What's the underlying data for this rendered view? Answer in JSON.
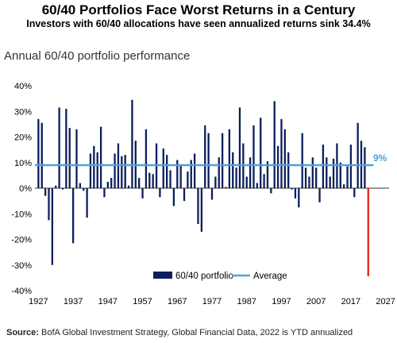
{
  "header": {
    "title": "60/40 Portfolios Face Worst Returns in a Century",
    "subtitle": "Investors with 60/40 allocations have seen annualized returns sink 34.4%"
  },
  "footer": {
    "source_label": "Source:",
    "source_text": "BofA Global Investment Strategy, Global Financial Data, 2022 is YTD annualized"
  },
  "chart_data": {
    "type": "bar",
    "title": "Annual 60/40 portfolio performance",
    "x_ticks": [
      "1927",
      "1937",
      "1947",
      "1957",
      "1967",
      "1977",
      "1987",
      "1997",
      "2007",
      "2017",
      "2027"
    ],
    "y_ticks": [
      "40%",
      "30%",
      "20%",
      "10%",
      "0%",
      "-10%",
      "-20%",
      "-30%",
      "-40%"
    ],
    "ylim": [
      -40,
      40
    ],
    "xlim": [
      1926,
      2028
    ],
    "legend": {
      "position": "bottom-center",
      "bar_label": "60/40 portfolio",
      "line_label": "Average"
    },
    "average": {
      "value": 9,
      "label": "9%"
    },
    "colors": {
      "bars": "#0b1f5c",
      "highlight": "#e8231f",
      "average": "#4ea3d8"
    },
    "highlight_year": 2022,
    "series": [
      {
        "name": "60/40 portfolio",
        "years": [
          1927,
          1928,
          1929,
          1930,
          1931,
          1932,
          1933,
          1934,
          1935,
          1936,
          1937,
          1938,
          1939,
          1940,
          1941,
          1942,
          1943,
          1944,
          1945,
          1946,
          1947,
          1948,
          1949,
          1950,
          1951,
          1952,
          1953,
          1954,
          1955,
          1956,
          1957,
          1958,
          1959,
          1960,
          1961,
          1962,
          1963,
          1964,
          1965,
          1966,
          1967,
          1968,
          1969,
          1970,
          1971,
          1972,
          1973,
          1974,
          1975,
          1976,
          1977,
          1978,
          1979,
          1980,
          1981,
          1982,
          1983,
          1984,
          1985,
          1986,
          1987,
          1988,
          1989,
          1990,
          1991,
          1992,
          1993,
          1994,
          1995,
          1996,
          1997,
          1998,
          1999,
          2000,
          2001,
          2002,
          2003,
          2004,
          2005,
          2006,
          2007,
          2008,
          2009,
          2010,
          2011,
          2012,
          2013,
          2014,
          2015,
          2016,
          2017,
          2018,
          2019,
          2020,
          2021,
          2022
        ],
        "values": [
          27,
          25.5,
          -3,
          -12.5,
          -30,
          1,
          31.5,
          -0.5,
          31,
          23.5,
          -21.5,
          23,
          2,
          -1,
          -11.5,
          13.5,
          16.5,
          14,
          24,
          -3.5,
          2.5,
          4,
          13.5,
          17.5,
          12.5,
          13,
          1,
          34.5,
          18.5,
          4,
          -4,
          23,
          6,
          5.5,
          17.5,
          -3.5,
          15.5,
          13,
          7,
          -7,
          11,
          9,
          -5,
          6.5,
          11,
          13.5,
          -14,
          -17,
          24.5,
          21.5,
          -4.5,
          4.5,
          12,
          21.5,
          0.5,
          23,
          14,
          8,
          31.5,
          17.5,
          4.5,
          12,
          24.5,
          2,
          27.5,
          5.5,
          10.5,
          -2,
          34,
          16.5,
          27,
          23,
          14,
          -0.5,
          -4,
          -7.5,
          21.5,
          8,
          4.5,
          12,
          8,
          -5.5,
          17,
          12,
          4.5,
          11.5,
          17.5,
          10,
          1.5,
          8.5,
          17,
          -3.5,
          25.5,
          18.5,
          16,
          -34.4
        ]
      }
    ]
  }
}
